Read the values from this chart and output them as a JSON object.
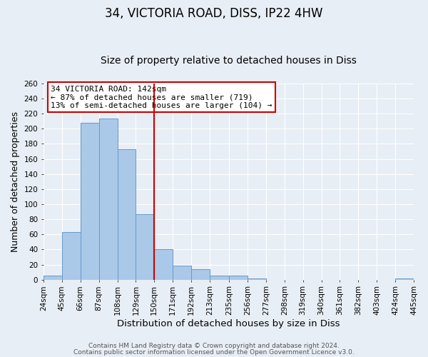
{
  "title1": "34, VICTORIA ROAD, DISS, IP22 4HW",
  "title2": "Size of property relative to detached houses in Diss",
  "xlabel": "Distribution of detached houses by size in Diss",
  "ylabel": "Number of detached properties",
  "bin_labels": [
    "24sqm",
    "45sqm",
    "66sqm",
    "87sqm",
    "108sqm",
    "129sqm",
    "150sqm",
    "171sqm",
    "192sqm",
    "213sqm",
    "235sqm",
    "256sqm",
    "277sqm",
    "298sqm",
    "319sqm",
    "340sqm",
    "361sqm",
    "382sqm",
    "403sqm",
    "424sqm",
    "445sqm"
  ],
  "bar_heights": [
    5,
    63,
    208,
    213,
    173,
    87,
    40,
    19,
    14,
    5,
    5,
    2,
    0,
    0,
    0,
    0,
    0,
    0,
    0,
    2
  ],
  "bin_edges": [
    24,
    45,
    66,
    87,
    108,
    129,
    150,
    171,
    192,
    213,
    235,
    256,
    277,
    298,
    319,
    340,
    361,
    382,
    403,
    424,
    445
  ],
  "bar_color": "#aac9e8",
  "bar_edge_color": "#6699cc",
  "vline_x": 150,
  "vline_color": "#cc0000",
  "ylim": [
    0,
    260
  ],
  "yticks": [
    0,
    20,
    40,
    60,
    80,
    100,
    120,
    140,
    160,
    180,
    200,
    220,
    240,
    260
  ],
  "annotation_title": "34 VICTORIA ROAD: 142sqm",
  "annotation_line1": "← 87% of detached houses are smaller (719)",
  "annotation_line2": "13% of semi-detached houses are larger (104) →",
  "annotation_box_color": "#ffffff",
  "annotation_box_edge": "#cc0000",
  "footnote1": "Contains HM Land Registry data © Crown copyright and database right 2024.",
  "footnote2": "Contains public sector information licensed under the Open Government Licence v3.0.",
  "background_color": "#e8eef5",
  "grid_color": "#ffffff",
  "title1_fontsize": 12,
  "title2_fontsize": 10,
  "xlabel_fontsize": 9.5,
  "ylabel_fontsize": 9,
  "tick_fontsize": 7.5,
  "footnote_fontsize": 6.5
}
